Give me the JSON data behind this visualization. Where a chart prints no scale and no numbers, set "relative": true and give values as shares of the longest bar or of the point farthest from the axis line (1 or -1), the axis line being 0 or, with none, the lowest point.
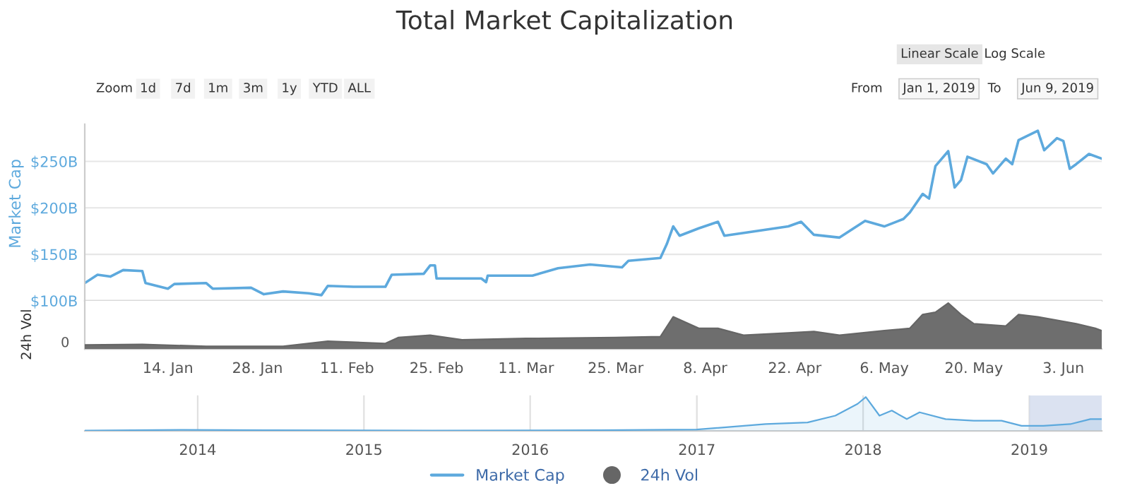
{
  "chart_data": [
    {
      "type": "line",
      "title": "Total Market Capitalization",
      "ylabel": "Market Cap",
      "grid": "y",
      "legend": "bottom",
      "tick_labels": "y",
      "xlim": [
        "2019-01-01",
        "2019-06-09"
      ],
      "ylim": [
        100,
        290
      ],
      "xticks": [
        {
          "value": "2019-01-14",
          "label": null
        },
        {
          "value": "2019-01-28",
          "label": null
        },
        {
          "value": "2019-02-11",
          "label": null
        },
        {
          "value": "2019-02-25",
          "label": null
        },
        {
          "value": "2019-03-11",
          "label": null
        },
        {
          "value": "2019-03-25",
          "label": null
        },
        {
          "value": "2019-04-08",
          "label": null
        },
        {
          "value": "2019-04-22",
          "label": null
        },
        {
          "value": "2019-05-06",
          "label": null
        },
        {
          "value": "2019-05-20",
          "label": null
        },
        {
          "value": "2019-06-03",
          "label": null
        }
      ],
      "yticks": [
        {
          "value": 100,
          "label": "$100B"
        },
        {
          "value": 150,
          "label": "$150B"
        },
        {
          "value": 200,
          "label": "$200B"
        },
        {
          "value": 250,
          "label": "$250B"
        }
      ],
      "annotations": [
        "Linear Scale",
        "Log Scale",
        "Zoom",
        "1d",
        "7d",
        "1m",
        "3m",
        "1y",
        "YTD",
        "ALL",
        "From",
        "Jan 1, 2019",
        "To",
        "Jun 9, 2019"
      ],
      "series": [
        {
          "name": "Market Cap",
          "color": "#5da9dd",
          "x": [
            "2019-01-01",
            "2019-01-03",
            "2019-01-05",
            "2019-01-07",
            "2019-01-10",
            "2019-01-10T12:00",
            "2019-01-14",
            "2019-01-15",
            "2019-01-20",
            "2019-01-21",
            "2019-01-27",
            "2019-01-29",
            "2019-02-01",
            "2019-02-05",
            "2019-02-07",
            "2019-02-08",
            "2019-02-12",
            "2019-02-17",
            "2019-02-18",
            "2019-02-23",
            "2019-02-24",
            "2019-02-24T18:00",
            "2019-02-25",
            "2019-03-04",
            "2019-03-04T18:00",
            "2019-03-05",
            "2019-03-12",
            "2019-03-16",
            "2019-03-21",
            "2019-03-26",
            "2019-03-27",
            "2019-04-01",
            "2019-04-02",
            "2019-04-03",
            "2019-04-04",
            "2019-04-07",
            "2019-04-10",
            "2019-04-11",
            "2019-04-15",
            "2019-04-21",
            "2019-04-23",
            "2019-04-25",
            "2019-04-29",
            "2019-05-03",
            "2019-05-06",
            "2019-05-09",
            "2019-05-10",
            "2019-05-12",
            "2019-05-13",
            "2019-05-14",
            "2019-05-16",
            "2019-05-17",
            "2019-05-18",
            "2019-05-19",
            "2019-05-22",
            "2019-05-23",
            "2019-05-25",
            "2019-05-26",
            "2019-05-27",
            "2019-05-30",
            "2019-05-31",
            "2019-06-02",
            "2019-06-03",
            "2019-06-04",
            "2019-06-05",
            "2019-06-07",
            "2019-06-09"
          ],
          "values": [
            119,
            128,
            126,
            133,
            132,
            119,
            113,
            118,
            119,
            113,
            114,
            107,
            110,
            108,
            106,
            116,
            115,
            115,
            128,
            129,
            138,
            138,
            124,
            124,
            120,
            127,
            127,
            135,
            139,
            136,
            143,
            146,
            161,
            180,
            170,
            178,
            185,
            170,
            174,
            180,
            185,
            171,
            168,
            186,
            180,
            188,
            195,
            215,
            210,
            245,
            261,
            222,
            230,
            255,
            247,
            237,
            253,
            247,
            273,
            283,
            262,
            275,
            272,
            242,
            247,
            258,
            253
          ]
        }
      ]
    },
    {
      "type": "area",
      "ylabel": "24h Vol",
      "relative": true,
      "legend": "bottom",
      "tick_labels": "x",
      "annotations": [
        "0"
      ],
      "xlim": [
        "2019-01-01",
        "2019-06-09"
      ],
      "xticks": [
        {
          "value": "2019-01-14",
          "label": "14. Jan"
        },
        {
          "value": "2019-01-28",
          "label": "28. Jan"
        },
        {
          "value": "2019-02-11",
          "label": "11. Feb"
        },
        {
          "value": "2019-02-25",
          "label": "25. Feb"
        },
        {
          "value": "2019-03-11",
          "label": "11. Mar"
        },
        {
          "value": "2019-03-25",
          "label": "25. Mar"
        },
        {
          "value": "2019-04-08",
          "label": "8. Apr"
        },
        {
          "value": "2019-04-22",
          "label": "22. Apr"
        },
        {
          "value": "2019-05-06",
          "label": "6. May"
        },
        {
          "value": "2019-05-20",
          "label": "20. May"
        },
        {
          "value": "2019-06-03",
          "label": "3. Jun"
        }
      ],
      "series": [
        {
          "name": "24h Vol",
          "color": "#666666",
          "x": [
            "2019-01-01",
            "2019-01-10",
            "2019-01-20",
            "2019-02-01",
            "2019-02-08",
            "2019-02-17",
            "2019-02-19",
            "2019-02-24",
            "2019-03-01",
            "2019-03-11",
            "2019-03-25",
            "2019-04-01",
            "2019-04-03",
            "2019-04-07",
            "2019-04-10",
            "2019-04-14",
            "2019-04-21",
            "2019-04-25",
            "2019-04-29",
            "2019-05-06",
            "2019-05-10",
            "2019-05-12",
            "2019-05-14",
            "2019-05-16",
            "2019-05-18",
            "2019-05-20",
            "2019-05-25",
            "2019-05-27",
            "2019-05-30",
            "2019-06-03",
            "2019-06-05",
            "2019-06-08",
            "2019-06-09"
          ],
          "values": [
            0.09,
            0.1,
            0.06,
            0.06,
            0.17,
            0.12,
            0.25,
            0.3,
            0.2,
            0.23,
            0.25,
            0.27,
            0.7,
            0.45,
            0.45,
            0.3,
            0.35,
            0.38,
            0.3,
            0.4,
            0.45,
            0.75,
            0.8,
            1.0,
            0.75,
            0.55,
            0.5,
            0.75,
            0.7,
            0.6,
            0.55,
            0.45,
            0.4
          ]
        }
      ]
    },
    {
      "type": "area",
      "relative": true,
      "grid": "x",
      "tick_labels": "x",
      "xlim": [
        "2013-04-28",
        "2019-06-09"
      ],
      "xticks": [
        {
          "value": "2014-01-01",
          "label": "2014"
        },
        {
          "value": "2015-01-01",
          "label": "2015"
        },
        {
          "value": "2016-01-01",
          "label": "2016"
        },
        {
          "value": "2017-01-01",
          "label": "2017"
        },
        {
          "value": "2018-01-01",
          "label": "2018"
        },
        {
          "value": "2019-01-01",
          "label": "2019"
        }
      ],
      "bands": [
        {
          "axis": "x",
          "from": "2019-01-01",
          "to": "2019-06-09",
          "color": "#ccd6eb"
        }
      ],
      "series": [
        {
          "color": "#5da9dd",
          "x": [
            "2013-04-28",
            "2013-12-01",
            "2014-06-01",
            "2015-06-01",
            "2016-06-01",
            "2017-01-01",
            "2017-06-01",
            "2017-09-01",
            "2017-11-01",
            "2017-12-20",
            "2018-01-07",
            "2018-02-06",
            "2018-03-05",
            "2018-04-07",
            "2018-05-05",
            "2018-07-01",
            "2018-09-01",
            "2018-11-01",
            "2018-12-15",
            "2019-02-01",
            "2019-04-01",
            "2019-05-15",
            "2019-06-09"
          ],
          "values": [
            0.01,
            0.03,
            0.02,
            0.01,
            0.02,
            0.04,
            0.2,
            0.25,
            0.45,
            0.8,
            1.0,
            0.45,
            0.6,
            0.35,
            0.55,
            0.35,
            0.3,
            0.3,
            0.15,
            0.15,
            0.2,
            0.35,
            0.35
          ]
        }
      ]
    }
  ]
}
